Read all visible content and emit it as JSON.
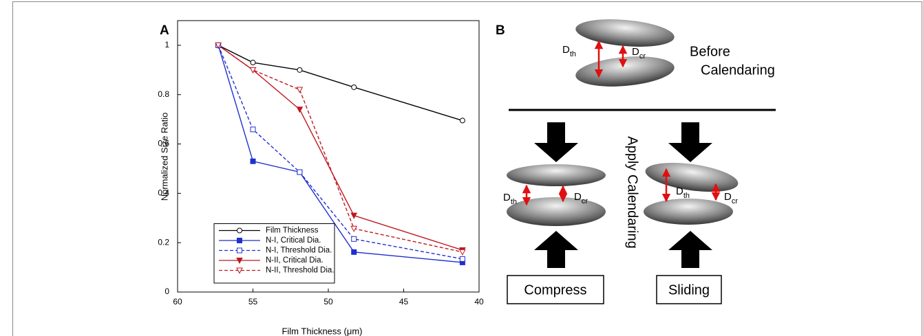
{
  "chart_data": {
    "type": "line",
    "panel_label": "A",
    "xlabel": "Film Thickness (μm)",
    "ylabel": "Normalized Size Ratio",
    "x": [
      57.3,
      55,
      51.9,
      48.3,
      41.1
    ],
    "xlim": [
      60,
      40
    ],
    "xticks": [
      60,
      55,
      50,
      45,
      40
    ],
    "ylim": [
      0,
      1.1
    ],
    "yticks": [
      0,
      0.2,
      0.4,
      0.6,
      0.8,
      1
    ],
    "legend": "lower left",
    "series": [
      {
        "name": "Film Thickness",
        "color": "#000000",
        "linestyle": "solid",
        "marker": "circle-open",
        "values": [
          1,
          0.93,
          0.9,
          0.83,
          0.695
        ]
      },
      {
        "name": "N-I, Critical Dia.",
        "color": "#1f2fd0",
        "linestyle": "solid",
        "marker": "square-filled",
        "values": [
          1,
          0.53,
          0.486,
          0.162,
          0.12
        ]
      },
      {
        "name": "N-I, Threshold Dia.",
        "color": "#1f2fd0",
        "linestyle": "dashed",
        "marker": "square-open",
        "values": [
          1,
          0.659,
          0.486,
          0.215,
          0.134
        ]
      },
      {
        "name": "N-II, Critical Dia.",
        "color": "#c0171e",
        "linestyle": "solid",
        "marker": "triangle-down-filled",
        "values": [
          1,
          0.9,
          0.74,
          0.31,
          0.17
        ]
      },
      {
        "name": "N-II, Threshold Dia.",
        "color": "#c0171e",
        "linestyle": "dashed",
        "marker": "triangle-down-open",
        "values": [
          1,
          0.9,
          0.82,
          0.257,
          0.162
        ]
      }
    ]
  },
  "diagram": {
    "panel_label": "B",
    "before": [
      "Before",
      "Calendaring"
    ],
    "apply": "Apply Calendaring",
    "compress": "Compress",
    "sliding": "Sliding",
    "labels": [
      {
        "main": "D",
        "sub": "th"
      },
      {
        "main": "D",
        "sub": "cr"
      },
      {
        "main": "D",
        "sub": "th"
      },
      {
        "main": "D",
        "sub": "cr"
      },
      {
        "main": "D",
        "sub": "th"
      },
      {
        "main": "D",
        "sub": "cr"
      }
    ]
  }
}
